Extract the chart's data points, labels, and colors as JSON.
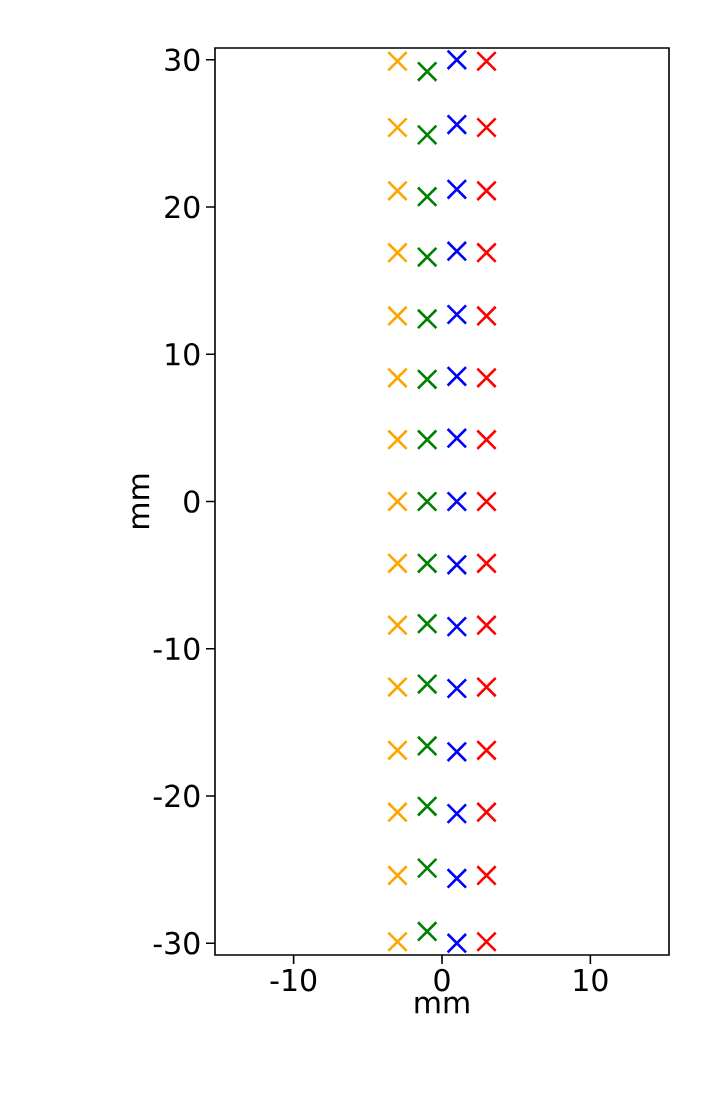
{
  "chart_data": {
    "type": "scatter",
    "xlabel": "mm",
    "ylabel": "mm",
    "xlim": [
      -15.3,
      15.3
    ],
    "ylim": [
      -30.8,
      30.8
    ],
    "xticks": [
      -10,
      0,
      10
    ],
    "yticks": [
      -30,
      -20,
      -10,
      0,
      10,
      20,
      30
    ],
    "marker": "cross",
    "series": [
      {
        "color": "#ffa500",
        "x": [
          -3,
          -3,
          -3,
          -3,
          -3,
          -3,
          -3,
          -3,
          -3,
          -3,
          -3,
          -3,
          -3,
          -3,
          -3
        ],
        "values": [
          -29.9,
          -25.4,
          -21.1,
          -16.9,
          -12.6,
          -8.4,
          -4.2,
          0,
          4.2,
          8.4,
          12.6,
          16.9,
          21.1,
          25.4,
          29.9
        ]
      },
      {
        "color": "#008000",
        "x": [
          -1,
          -1,
          -1,
          -1,
          -1,
          -1,
          -1,
          -1,
          -1,
          -1,
          -1,
          -1,
          -1,
          -1,
          -1
        ],
        "values": [
          -29.2,
          -24.9,
          -20.7,
          -16.6,
          -12.4,
          -8.3,
          -4.2,
          0,
          4.2,
          8.3,
          12.4,
          16.6,
          20.7,
          24.9,
          29.2
        ]
      },
      {
        "color": "#0000ff",
        "x": [
          1,
          1,
          1,
          1,
          1,
          1,
          1,
          1,
          1,
          1,
          1,
          1,
          1,
          1,
          1
        ],
        "values": [
          -30.0,
          -25.6,
          -21.2,
          -17.0,
          -12.7,
          -8.5,
          -4.3,
          0,
          4.3,
          8.5,
          12.7,
          17.0,
          21.2,
          25.6,
          30.0
        ]
      },
      {
        "color": "#ff0000",
        "x": [
          3,
          3,
          3,
          3,
          3,
          3,
          3,
          3,
          3,
          3,
          3,
          3,
          3,
          3,
          3
        ],
        "values": [
          -29.9,
          -25.4,
          -21.1,
          -16.9,
          -12.6,
          -8.4,
          -4.2,
          0,
          4.2,
          8.4,
          12.6,
          16.9,
          21.1,
          25.4,
          29.9
        ]
      }
    ]
  }
}
